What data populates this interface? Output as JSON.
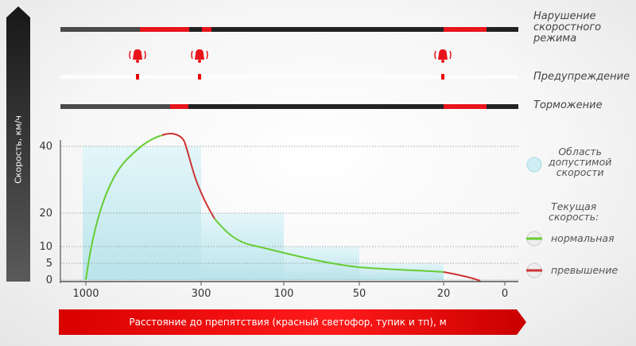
{
  "chart_data": {
    "type": "line",
    "ylabel": "Скорость, км/ч",
    "xlabel": "Расстояние до препятствия (красный светофор, тупик и тп), м",
    "x_ticks": [
      "1000",
      "300",
      "100",
      "50",
      "20",
      "0"
    ],
    "y_ticks": [
      0,
      5,
      10,
      20,
      40
    ],
    "permitted_speed_steps": [
      {
        "from": "1000",
        "to": "300",
        "speed": 40
      },
      {
        "from": "300",
        "to": "100",
        "speed": 20
      },
      {
        "from": "100",
        "to": "50",
        "speed": 10
      },
      {
        "from": "50",
        "to": "20",
        "speed": 5
      }
    ],
    "current_speed": [
      {
        "x": "1000",
        "y": 0
      },
      {
        "x": "300",
        "y": 23
      },
      {
        "x": "100",
        "y": 8
      },
      {
        "x": "50",
        "y": 4
      },
      {
        "x": "20",
        "y": 2.5
      },
      {
        "x": "0",
        "y": 0
      }
    ],
    "peak_speed": 45,
    "legend": {
      "zone_label": "Область\nдопустимой\nскорости",
      "current_title": "Текущая\nскорость:",
      "normal_label": "нормальная",
      "excess_label": "превышение",
      "colors": {
        "normal": "#66cc33",
        "excess": "#cc3333",
        "zone": "#bfe8ef"
      }
    },
    "signal_tracks": [
      {
        "label": "Нарушение\nскоростного\nрежима"
      },
      {
        "label": "Предупреждение"
      },
      {
        "label": "Торможение"
      }
    ],
    "warning_icon": "alarm-bell-icon"
  }
}
